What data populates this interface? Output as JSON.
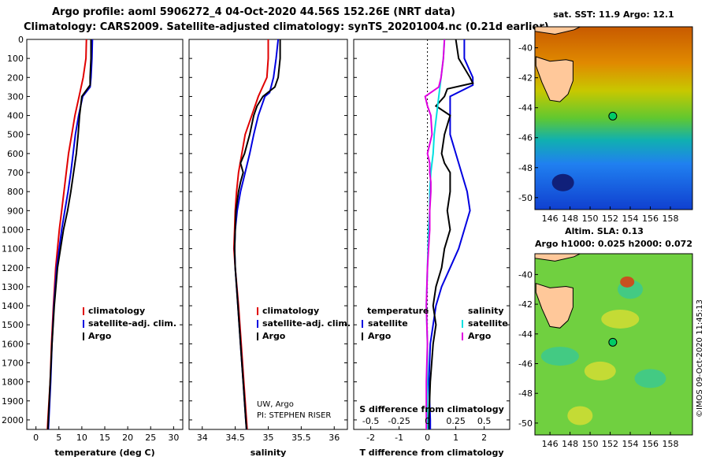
{
  "header": {
    "line1": "Argo profile: aoml 5906272_4 04-Oct-2020 44.56S 152.26E (NRT data)",
    "line2": "Climatology: CARS2009. Satellite-adjusted climatology: synTS_20201004.nc (0.21d earlier)"
  },
  "maps": {
    "sst_title": "sat. SST: 11.9 Argo: 12.1",
    "sla_title1": "Altim. SLA: 0.13",
    "sla_title2": "Argo h1000: 0.025 h2000: 0.072",
    "lat_ticks": [
      "-40",
      "-42",
      "-44",
      "-46",
      "-48",
      "-50"
    ],
    "lon_ticks": [
      "146",
      "148",
      "150",
      "152",
      "154",
      "156",
      "158"
    ],
    "credit": "©IMOS 09-Oct-2020 11:45:13",
    "argo_position": {
      "lat": -44.56,
      "lon": 152.26
    },
    "colors": {
      "sst_warm": "#d06000",
      "sst_cool": "#1060ff",
      "land": "#ffc89a",
      "marker": "#00cc66"
    }
  },
  "colors": {
    "climatology": "#e00000",
    "satellite": "#0000e0",
    "argo": "#000000",
    "sat_temp_diff": "#00e0e0",
    "sat_sal_diff": "#e000e0"
  },
  "chart_data": [
    {
      "type": "line",
      "name": "temperature",
      "xlabel": "temperature (deg C)",
      "ylabel": "",
      "xlim": [
        -2,
        32
      ],
      "ylim": [
        2050,
        0
      ],
      "xticks": [
        "0",
        "5",
        "10",
        "15",
        "20",
        "25",
        "30"
      ],
      "yticks": [
        "0",
        "100",
        "200",
        "300",
        "400",
        "500",
        "600",
        "700",
        "800",
        "900",
        "1000",
        "1100",
        "1200",
        "1300",
        "1400",
        "1500",
        "1600",
        "1700",
        "1800",
        "1900",
        "2000"
      ],
      "legend": [
        "climatology",
        "satellite-adj. clim.",
        "Argo"
      ],
      "series": [
        {
          "name": "climatology",
          "depth": [
            0,
            100,
            200,
            300,
            400,
            500,
            600,
            700,
            800,
            900,
            1000,
            1200,
            1400,
            1600,
            1800,
            2000,
            2050
          ],
          "values": [
            11.0,
            10.9,
            10.3,
            9.4,
            8.5,
            7.8,
            7.1,
            6.6,
            6.1,
            5.6,
            5.1,
            4.3,
            3.8,
            3.4,
            3.1,
            2.6,
            2.5
          ]
        },
        {
          "name": "satellite-adj. clim.",
          "depth": [
            0,
            100,
            200,
            250,
            300,
            400,
            500,
            600,
            700,
            800,
            900,
            1000,
            1200,
            1400,
            1600,
            1800,
            2000,
            2050
          ],
          "values": [
            12.3,
            12.2,
            12.0,
            11.8,
            10.2,
            9.3,
            8.6,
            8.1,
            7.6,
            7.0,
            6.3,
            5.6,
            4.5,
            3.9,
            3.5,
            3.2,
            2.8,
            2.7
          ]
        },
        {
          "name": "Argo",
          "depth": [
            0,
            100,
            200,
            240,
            300,
            400,
            500,
            600,
            700,
            800,
            900,
            1000,
            1200,
            1400,
            1600,
            1800,
            2000,
            2050
          ],
          "values": [
            12.0,
            12.0,
            11.8,
            11.8,
            10.0,
            9.5,
            9.2,
            8.8,
            8.2,
            7.6,
            6.9,
            6.0,
            4.7,
            4.0,
            3.5,
            3.1,
            2.7,
            2.6
          ]
        }
      ]
    },
    {
      "type": "line",
      "name": "salinity",
      "xlabel": "salinity",
      "xlim": [
        33.8,
        36.2
      ],
      "ylim": [
        2050,
        0
      ],
      "xticks": [
        "34",
        "34.5",
        "35",
        "35.5",
        "36"
      ],
      "legend": [
        "climatology",
        "satellite-adj. clim.",
        "Argo"
      ],
      "annotation": [
        "UW, Argo",
        "PI: STEPHEN RISER"
      ],
      "series": [
        {
          "name": "climatology",
          "depth": [
            0,
            100,
            200,
            300,
            400,
            500,
            600,
            700,
            800,
            900,
            1000,
            1100,
            1200,
            1400,
            1600,
            1800,
            2000,
            2050
          ],
          "values": [
            35.0,
            35.0,
            34.98,
            34.85,
            34.75,
            34.65,
            34.6,
            34.55,
            34.52,
            34.5,
            34.49,
            34.48,
            34.5,
            34.55,
            34.59,
            34.63,
            34.67,
            34.68
          ]
        },
        {
          "name": "satellite-adj. clim.",
          "depth": [
            0,
            100,
            200,
            280,
            300,
            400,
            500,
            600,
            700,
            800,
            900,
            1000,
            1100,
            1200,
            1400,
            1600,
            1800,
            2000,
            2050
          ],
          "values": [
            35.15,
            35.12,
            35.08,
            35.02,
            34.95,
            34.85,
            34.78,
            34.72,
            34.65,
            34.58,
            34.53,
            34.5,
            34.49,
            34.5,
            34.54,
            34.58,
            34.62,
            34.66,
            34.67
          ]
        },
        {
          "name": "Argo",
          "depth": [
            0,
            100,
            200,
            250,
            300,
            350,
            400,
            500,
            600,
            650,
            700,
            750,
            800,
            900,
            1000,
            1100,
            1200,
            1400,
            1600,
            1800,
            2000,
            2050
          ],
          "values": [
            35.18,
            35.18,
            35.15,
            35.1,
            34.92,
            34.83,
            34.78,
            34.72,
            34.64,
            34.58,
            34.62,
            34.58,
            34.55,
            34.51,
            34.5,
            34.49,
            34.5,
            34.54,
            34.58,
            34.62,
            34.66,
            34.67
          ]
        }
      ]
    },
    {
      "type": "line",
      "name": "difference from climatology",
      "xlabel": "T difference from climatology",
      "top_label": "S difference from climatology",
      "xlim": [
        -2.6,
        2.9
      ],
      "ylim": [
        2050,
        0
      ],
      "xticks": [
        "-2",
        "-1",
        "0",
        "1",
        "2"
      ],
      "top_ticks": [
        "-0.5",
        "-0.25",
        "0",
        "0.25",
        "0.5"
      ],
      "legend_temperature": {
        "title": "temperature",
        "items": [
          "satellite",
          "Argo"
        ]
      },
      "legend_salinity": {
        "title": "salinity",
        "items": [
          "satellite",
          "Argo"
        ]
      },
      "series": [
        {
          "name": "temperature satellite",
          "depth": [
            0,
            100,
            200,
            240,
            300,
            350,
            400,
            500,
            600,
            700,
            800,
            900,
            1000,
            1100,
            1200,
            1300,
            1400,
            1600,
            1800,
            2000,
            2050
          ],
          "values": [
            1.3,
            1.3,
            1.6,
            1.6,
            0.8,
            0.8,
            0.8,
            0.8,
            1.0,
            1.2,
            1.4,
            1.5,
            1.3,
            1.1,
            0.8,
            0.5,
            0.3,
            0.1,
            0.05,
            0.1,
            0.1
          ]
        },
        {
          "name": "temperature Argo",
          "depth": [
            0,
            100,
            200,
            230,
            260,
            300,
            350,
            400,
            500,
            600,
            650,
            700,
            800,
            900,
            1000,
            1100,
            1200,
            1300,
            1400,
            1500,
            1600,
            1800,
            2000,
            2050
          ],
          "values": [
            1.0,
            1.1,
            1.5,
            1.6,
            0.7,
            0.6,
            0.3,
            0.8,
            0.6,
            0.5,
            0.6,
            0.8,
            0.8,
            0.7,
            0.8,
            0.6,
            0.5,
            0.3,
            0.2,
            0.3,
            0.2,
            0.1,
            0.05,
            0.05
          ]
        },
        {
          "name": "salinity satellite",
          "depth": [
            0,
            100,
            200,
            300,
            400,
            500,
            600,
            700,
            800,
            900,
            1000,
            1200,
            1400,
            1600,
            1800,
            2000,
            2050
          ],
          "values": [
            0.15,
            0.14,
            0.12,
            0.1,
            0.08,
            0.06,
            0.05,
            0.03,
            0.02,
            0.02,
            0.01,
            0.0,
            -0.01,
            0.0,
            0.0,
            0.0,
            0.0
          ]
        },
        {
          "name": "salinity Argo",
          "depth": [
            0,
            100,
            200,
            250,
            300,
            350,
            400,
            500,
            600,
            650,
            700,
            750,
            800,
            900,
            1000,
            1100,
            1200,
            1400,
            1600,
            1800,
            2000,
            2050
          ],
          "values": [
            0.15,
            0.14,
            0.12,
            0.1,
            -0.02,
            0.0,
            0.03,
            0.04,
            0.0,
            0.02,
            0.02,
            0.03,
            0.03,
            0.02,
            0.02,
            0.01,
            0.0,
            -0.01,
            0.0,
            -0.01,
            -0.01,
            -0.01
          ]
        }
      ]
    }
  ]
}
